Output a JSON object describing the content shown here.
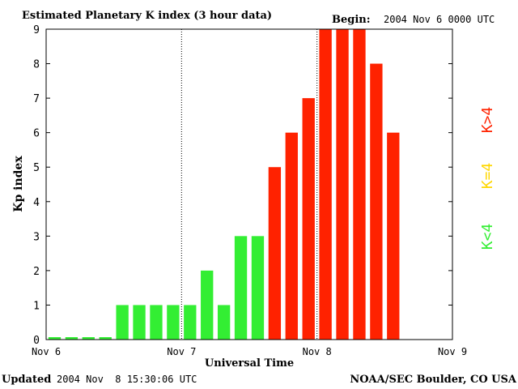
{
  "header": {
    "title": "Estimated Planetary K index (3 hour data)",
    "begin_label": "Begin:",
    "begin_value": "2004 Nov 6 0000 UTC"
  },
  "footer": {
    "updated_label": "Updated",
    "updated_value": "2004 Nov  8 15:30:06 UTC",
    "source": "NOAA/SEC Boulder, CO USA"
  },
  "legend": {
    "low": "K<4",
    "equal": "K=4",
    "high": "K>4"
  },
  "colors": {
    "low": "#33ee33",
    "equal": "#ffd700",
    "high": "#ff2200",
    "axis": "#000000",
    "background": "#ffffff"
  },
  "chart_data": {
    "type": "bar",
    "title": "Estimated Planetary K index (3 hour data)",
    "xlabel": "Universal Time",
    "ylabel": "Kp index",
    "ylim": [
      0,
      9
    ],
    "y_ticks": [
      "0",
      "1",
      "2",
      "3",
      "4",
      "5",
      "6",
      "7",
      "8",
      "9"
    ],
    "x_ticks": [
      "Nov 6",
      "Nov 7",
      "Nov 8",
      "Nov 9"
    ],
    "day_dividers": [
      "Nov 7",
      "Nov 8"
    ],
    "interval_hours": 3,
    "values": [
      0,
      0,
      0,
      0,
      1,
      1,
      1,
      1,
      1,
      2,
      1,
      3,
      3,
      5,
      6,
      7,
      9,
      9,
      9,
      8,
      6
    ]
  }
}
